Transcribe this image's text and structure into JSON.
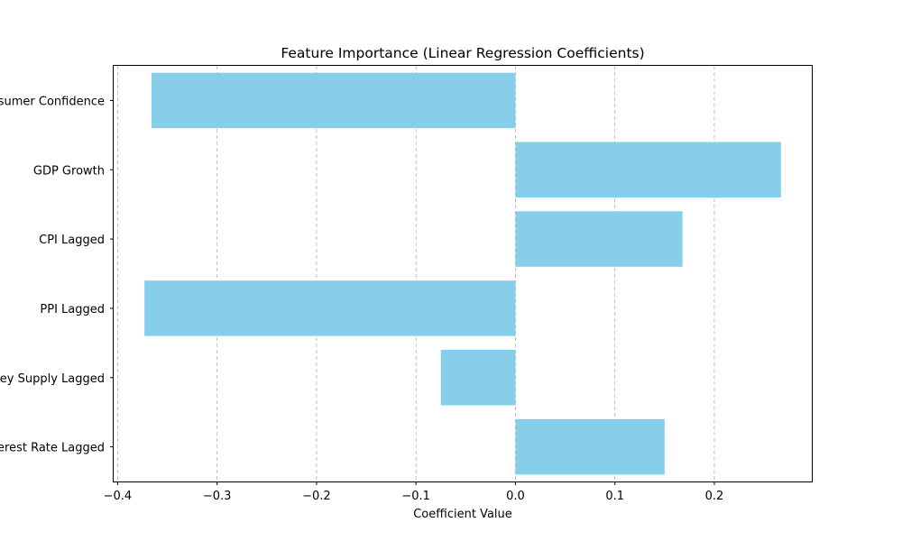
{
  "chart_data": {
    "type": "bar",
    "orientation": "horizontal",
    "title": "Feature Importance (Linear Regression Coefficients)",
    "xlabel": "Coefficient Value",
    "ylabel": "",
    "categories": [
      "Consumer Confidence",
      "GDP Growth",
      "CPI Lagged",
      "PPI Lagged",
      "Money Supply Lagged",
      "Interest Rate Lagged"
    ],
    "values": [
      -0.366,
      0.267,
      0.168,
      -0.373,
      -0.075,
      0.15
    ],
    "xlim": [
      -0.404,
      0.298
    ],
    "x_ticks": [
      -0.4,
      -0.3,
      -0.2,
      -0.1,
      0.0,
      0.1,
      0.2
    ],
    "x_tick_labels": [
      "−0.4",
      "−0.3",
      "−0.2",
      "−0.1",
      "0.0",
      "0.1",
      "0.2"
    ],
    "grid": "x-dashed",
    "bar_color": "#87ceeb",
    "grid_color": "#b0b0b0"
  }
}
